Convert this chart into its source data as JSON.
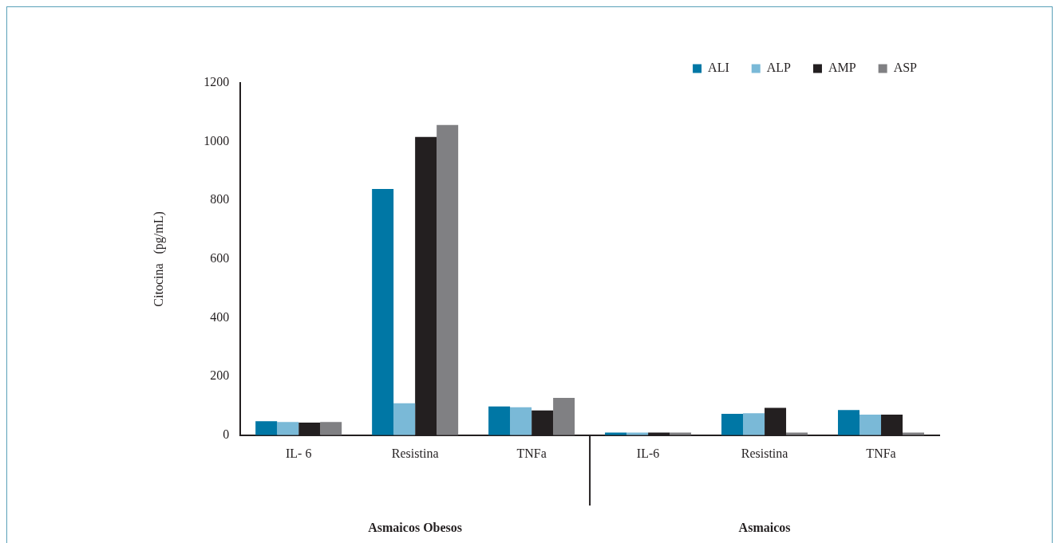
{
  "chart_data": {
    "type": "bar",
    "ylabel": "Citocina   (pg/mL)",
    "categories": [
      "IL- 6",
      "Resistina",
      "TNFa",
      "IL-6",
      "Resistina",
      "TNFa"
    ],
    "series": [
      {
        "name": "ALI",
        "color": "#0077a5",
        "values": [
          48,
          839,
          98,
          9,
          73,
          86
        ]
      },
      {
        "name": "ALP",
        "color": "#7ab9d7",
        "values": [
          45,
          109,
          95,
          9,
          75,
          70
        ]
      },
      {
        "name": "AMP",
        "color": "#231f20",
        "values": [
          43,
          1016,
          84,
          9,
          93,
          70
        ]
      },
      {
        "name": "ASP",
        "color": "#808083",
        "values": [
          45,
          1057,
          127,
          9,
          9,
          9
        ]
      }
    ],
    "ylim": [
      0,
      1200
    ],
    "yticks": [
      0,
      200,
      400,
      600,
      800,
      1000,
      1200
    ],
    "grid": false,
    "legend": "top right",
    "annotations": [
      "Asmaicos Obesos",
      "Asmaicos"
    ]
  }
}
